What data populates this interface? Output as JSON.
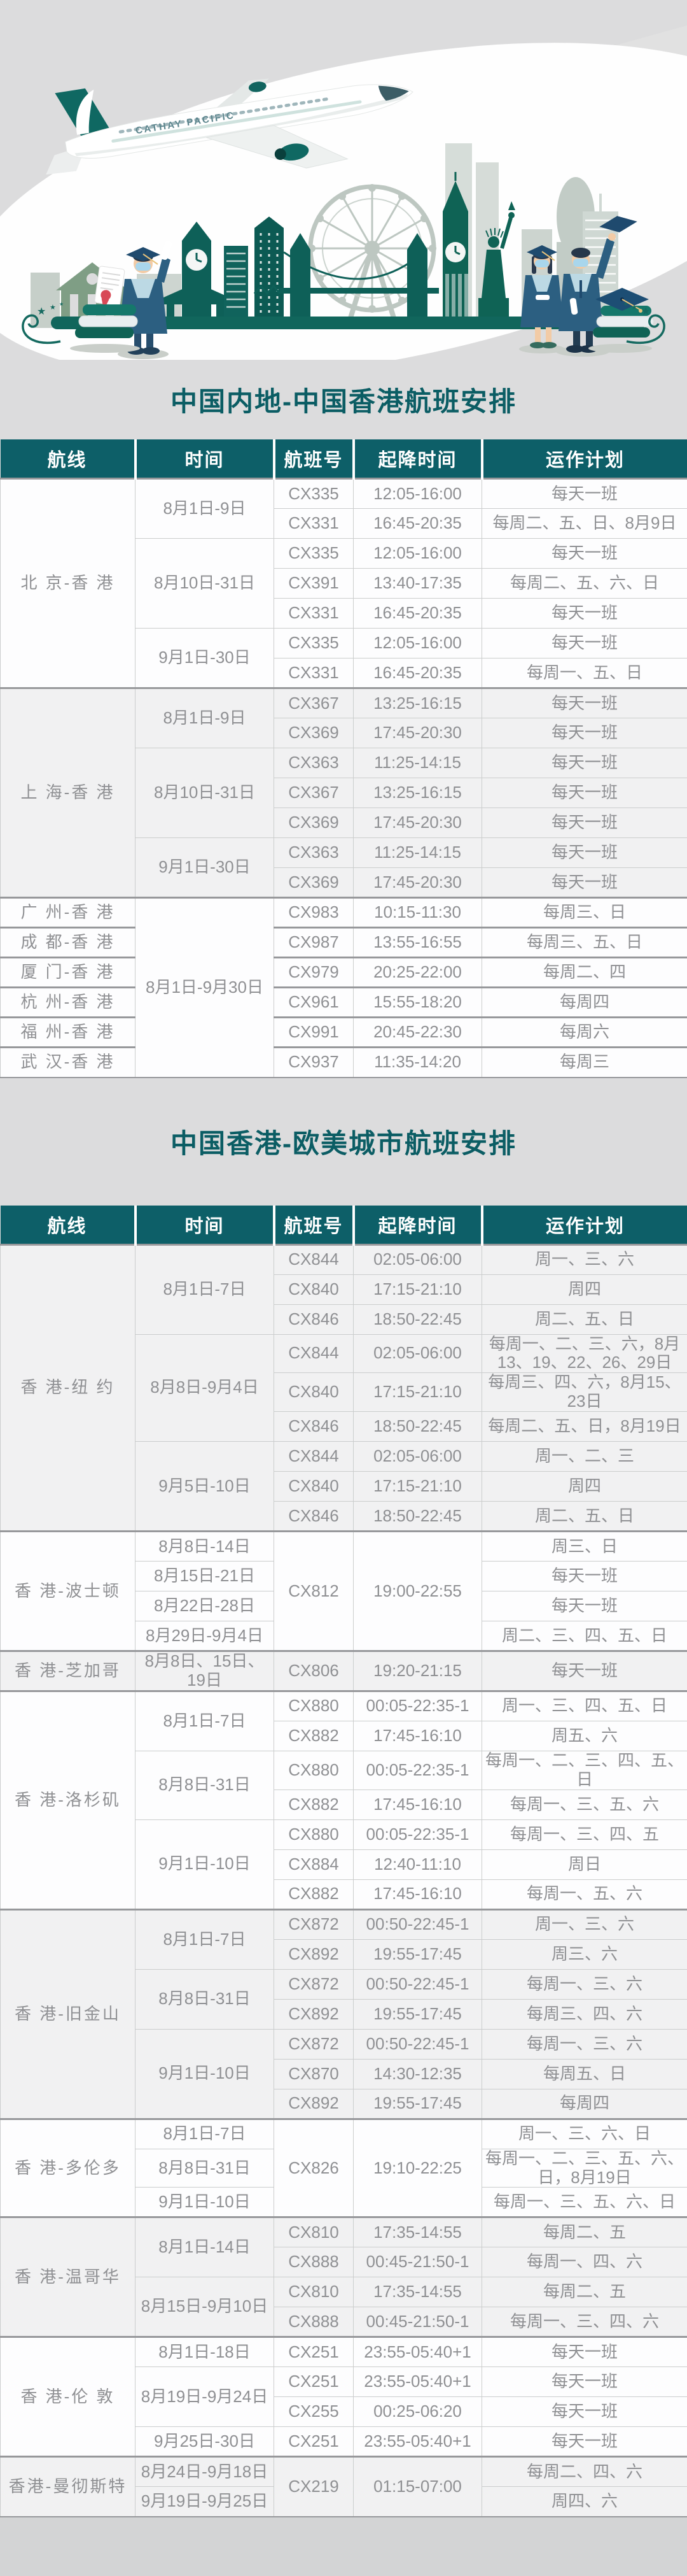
{
  "page": {
    "background": "#dcdcdd",
    "footer_background": "#d3d4d5"
  },
  "theme": {
    "header_bg": "#0d5f68",
    "header_text": "#ffffff",
    "title_color": "#0b5d64",
    "body_text": "#8f9093",
    "stripe_bg": "#f1f1f2",
    "grid_line": "#cbcdcd",
    "group_line": "#97989b",
    "skyline_teal": "#0e6058",
    "sage_green": "#7f9e85"
  },
  "illustration": {
    "plane_text": "CATHAY PACIFIC"
  },
  "tables": [
    {
      "title": "中国内地-中国香港航班安排",
      "columns": [
        "航线",
        "时间",
        "航班号",
        "起降时间",
        "运作计划"
      ],
      "groups": [
        {
          "type": "standard",
          "shade": "white",
          "route": "北 京-香 港",
          "time_groups": [
            {
              "time": "8月1日-9日",
              "flights": [
                {
                  "no": "CX335",
                  "sched": "12:05-16:00",
                  "plan": "每天一班"
                },
                {
                  "no": "CX331",
                  "sched": "16:45-20:35",
                  "plan": "每周二、五、日、8月9日"
                }
              ]
            },
            {
              "time": "8月10日-31日",
              "flights": [
                {
                  "no": "CX335",
                  "sched": "12:05-16:00",
                  "plan": "每天一班"
                },
                {
                  "no": "CX391",
                  "sched": "13:40-17:35",
                  "plan": "每周二、五、六、日"
                },
                {
                  "no": "CX331",
                  "sched": "16:45-20:35",
                  "plan": "每天一班"
                }
              ]
            },
            {
              "time": "9月1日-30日",
              "flights": [
                {
                  "no": "CX335",
                  "sched": "12:05-16:00",
                  "plan": "每天一班"
                },
                {
                  "no": "CX331",
                  "sched": "16:45-20:35",
                  "plan": "每周一、五、日"
                }
              ]
            }
          ]
        },
        {
          "type": "standard",
          "shade": "gray",
          "route": "上 海-香 港",
          "time_groups": [
            {
              "time": "8月1日-9日",
              "flights": [
                {
                  "no": "CX367",
                  "sched": "13:25-16:15",
                  "plan": "每天一班"
                },
                {
                  "no": "CX369",
                  "sched": "17:45-20:30",
                  "plan": "每天一班"
                }
              ]
            },
            {
              "time": "8月10日-31日",
              "flights": [
                {
                  "no": "CX363",
                  "sched": "11:25-14:15",
                  "plan": "每天一班"
                },
                {
                  "no": "CX367",
                  "sched": "13:25-16:15",
                  "plan": "每天一班"
                },
                {
                  "no": "CX369",
                  "sched": "17:45-20:30",
                  "plan": "每天一班"
                }
              ]
            },
            {
              "time": "9月1日-30日",
              "flights": [
                {
                  "no": "CX363",
                  "sched": "11:25-14:15",
                  "plan": "每天一班"
                },
                {
                  "no": "CX369",
                  "sched": "17:45-20:30",
                  "plan": "每天一班"
                }
              ]
            }
          ]
        },
        {
          "type": "shared-time",
          "shade": "white",
          "time": "8月1日-9月30日",
          "rows": [
            {
              "route": "广 州-香 港",
              "no": "CX983",
              "sched": "10:15-11:30",
              "plan": "每周三、日"
            },
            {
              "route": "成 都-香 港",
              "no": "CX987",
              "sched": "13:55-16:55",
              "plan": "每周三、五、日"
            },
            {
              "route": "厦 门-香 港",
              "no": "CX979",
              "sched": "20:25-22:00",
              "plan": "每周二、四"
            },
            {
              "route": "杭 州-香 港",
              "no": "CX961",
              "sched": "15:55-18:20",
              "plan": "每周四"
            },
            {
              "route": "福 州-香 港",
              "no": "CX991",
              "sched": "20:45-22:30",
              "plan": "每周六"
            },
            {
              "route": "武 汉-香 港",
              "no": "CX937",
              "sched": "11:35-14:20",
              "plan": "每周三"
            }
          ]
        }
      ]
    },
    {
      "title": "中国香港-欧美城市航班安排",
      "columns": [
        "航线",
        "时间",
        "航班号",
        "起降时间",
        "运作计划"
      ],
      "groups": [
        {
          "type": "standard",
          "shade": "gray",
          "route": "香 港-纽 约",
          "time_groups": [
            {
              "time": "8月1日-7日",
              "flights": [
                {
                  "no": "CX844",
                  "sched": "02:05-06:00",
                  "plan": "周一、三、六"
                },
                {
                  "no": "CX840",
                  "sched": "17:15-21:10",
                  "plan": "周四"
                },
                {
                  "no": "CX846",
                  "sched": "18:50-22:45",
                  "plan": "周二、五、日"
                }
              ]
            },
            {
              "time": "8月8日-9月4日",
              "flights": [
                {
                  "no": "CX844",
                  "sched": "02:05-06:00",
                  "plan": "每周一、二、三、六，8月13、19、22、26、29日"
                },
                {
                  "no": "CX840",
                  "sched": "17:15-21:10",
                  "plan": "每周三、四、六，8月15、23日"
                },
                {
                  "no": "CX846",
                  "sched": "18:50-22:45",
                  "plan": "每周二、五、日，8月19日"
                }
              ]
            },
            {
              "time": "9月5日-10日",
              "flights": [
                {
                  "no": "CX844",
                  "sched": "02:05-06:00",
                  "plan": "周一、二、三"
                },
                {
                  "no": "CX840",
                  "sched": "17:15-21:10",
                  "plan": "周四"
                },
                {
                  "no": "CX846",
                  "sched": "18:50-22:45",
                  "plan": "周二、五、日"
                }
              ]
            }
          ]
        },
        {
          "type": "merged-flight",
          "shade": "white",
          "route": "香 港-波士顿",
          "no": "CX812",
          "sched": "19:00-22:55",
          "rows": [
            {
              "time": "8月8日-14日",
              "plan": "周三、日"
            },
            {
              "time": "8月15日-21日",
              "plan": "每天一班"
            },
            {
              "time": "8月22日-28日",
              "plan": "每天一班"
            },
            {
              "time": "8月29日-9月4日",
              "plan": "周二、三、四、五、日"
            }
          ]
        },
        {
          "type": "standard",
          "shade": "gray",
          "route": "香 港-芝加哥",
          "time_groups": [
            {
              "time": "8月8日、15日、19日",
              "flights": [
                {
                  "no": "CX806",
                  "sched": "19:20-21:15",
                  "plan": "每天一班"
                }
              ]
            }
          ]
        },
        {
          "type": "standard",
          "shade": "white",
          "route": "香 港-洛杉矶",
          "time_groups": [
            {
              "time": "8月1日-7日",
              "flights": [
                {
                  "no": "CX880",
                  "sched": "00:05-22:35-1",
                  "plan": "周一、三、四、五、日"
                },
                {
                  "no": "CX882",
                  "sched": "17:45-16:10",
                  "plan": "周五、六"
                }
              ]
            },
            {
              "time": "8月8日-31日",
              "flights": [
                {
                  "no": "CX880",
                  "sched": "00:05-22:35-1",
                  "plan": "每周一、二、三、四、五、日"
                },
                {
                  "no": "CX882",
                  "sched": "17:45-16:10",
                  "plan": "每周一、三、五、六"
                }
              ]
            },
            {
              "time": "9月1日-10日",
              "flights": [
                {
                  "no": "CX880",
                  "sched": "00:05-22:35-1",
                  "plan": "每周一、三、四、五"
                },
                {
                  "no": "CX884",
                  "sched": "12:40-11:10",
                  "plan": "周日"
                },
                {
                  "no": "CX882",
                  "sched": "17:45-16:10",
                  "plan": "每周一、五、六"
                }
              ]
            }
          ]
        },
        {
          "type": "standard",
          "shade": "gray",
          "route": "香 港-旧金山",
          "time_groups": [
            {
              "time": "8月1日-7日",
              "flights": [
                {
                  "no": "CX872",
                  "sched": "00:50-22:45-1",
                  "plan": "周一、三、六"
                },
                {
                  "no": "CX892",
                  "sched": "19:55-17:45",
                  "plan": "周三、六"
                }
              ]
            },
            {
              "time": "8月8日-31日",
              "flights": [
                {
                  "no": "CX872",
                  "sched": "00:50-22:45-1",
                  "plan": "每周一、三、六"
                },
                {
                  "no": "CX892",
                  "sched": "19:55-17:45",
                  "plan": "每周三、四、六"
                }
              ]
            },
            {
              "time": "9月1日-10日",
              "flights": [
                {
                  "no": "CX872",
                  "sched": "00:50-22:45-1",
                  "plan": "每周一、三、六"
                },
                {
                  "no": "CX870",
                  "sched": "14:30-12:35",
                  "plan": "每周五、日"
                },
                {
                  "no": "CX892",
                  "sched": "19:55-17:45",
                  "plan": "每周四"
                }
              ]
            }
          ]
        },
        {
          "type": "merged-flight",
          "shade": "white",
          "route": "香 港-多伦多",
          "no": "CX826",
          "sched": "19:10-22:25",
          "rows": [
            {
              "time": "8月1日-7日",
              "plan": "周一、三、六、日"
            },
            {
              "time": "8月8日-31日",
              "plan": "每周一、二、三、五、六、日，8月19日"
            },
            {
              "time": "9月1日-10日",
              "plan": "每周一、三、五、六、日"
            }
          ]
        },
        {
          "type": "standard",
          "shade": "gray",
          "route": "香 港-温哥华",
          "time_groups": [
            {
              "time": "8月1日-14日",
              "flights": [
                {
                  "no": "CX810",
                  "sched": "17:35-14:55",
                  "plan": "每周二、五"
                },
                {
                  "no": "CX888",
                  "sched": "00:45-21:50-1",
                  "plan": "每周一、四、六"
                }
              ]
            },
            {
              "time": "8月15日-9月10日",
              "flights": [
                {
                  "no": "CX810",
                  "sched": "17:35-14:55",
                  "plan": "每周二、五"
                },
                {
                  "no": "CX888",
                  "sched": "00:45-21:50-1",
                  "plan": "每周一、三、四、六"
                }
              ]
            }
          ]
        },
        {
          "type": "standard",
          "shade": "white",
          "route": "香 港-伦 敦",
          "time_groups": [
            {
              "time": "8月1日-18日",
              "flights": [
                {
                  "no": "CX251",
                  "sched": "23:55-05:40+1",
                  "plan": "每天一班"
                }
              ]
            },
            {
              "time": "8月19日-9月24日",
              "flights": [
                {
                  "no": "CX251",
                  "sched": "23:55-05:40+1",
                  "plan": "每天一班"
                },
                {
                  "no": "CX255",
                  "sched": "00:25-06:20",
                  "plan": "每天一班"
                }
              ]
            },
            {
              "time": "9月25日-30日",
              "flights": [
                {
                  "no": "CX251",
                  "sched": "23:55-05:40+1",
                  "plan": "每天一班"
                }
              ]
            }
          ]
        },
        {
          "type": "merged-flight",
          "shade": "gray",
          "route": "香港-曼彻斯特",
          "no": "CX219",
          "sched": "01:15-07:00",
          "rows": [
            {
              "time": "8月24日-9月18日",
              "plan": "每周二、四、六"
            },
            {
              "time": "9月19日-9月25日",
              "plan": "周四、六"
            }
          ]
        }
      ]
    }
  ]
}
